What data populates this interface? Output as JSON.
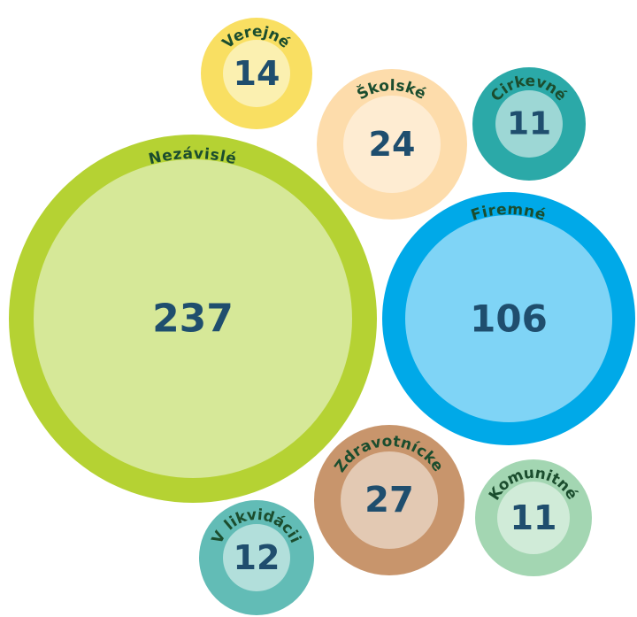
{
  "chart_data": {
    "type": "bubble",
    "categories": [
      "Verejné",
      "Školské",
      "Cirkevné",
      "Nezávislé",
      "Firemné",
      "Zdravotnícke",
      "Komunitné",
      "V likvidácii"
    ],
    "values": [
      14,
      24,
      11,
      237,
      106,
      27,
      11,
      12
    ],
    "colors": [
      "#f9df62",
      "#fddcab",
      "#2ba9a8",
      "#b5d233",
      "#00a9e8",
      "#c8956c",
      "#a3d6b2",
      "#62bcb6"
    ],
    "inner_colors": [
      "#fbf0b0",
      "#feecd2",
      "#9dd7d5",
      "#d6e898",
      "#7fd4f6",
      "#e3c9b3",
      "#d0ebd8",
      "#b2dfdb"
    ]
  }
}
